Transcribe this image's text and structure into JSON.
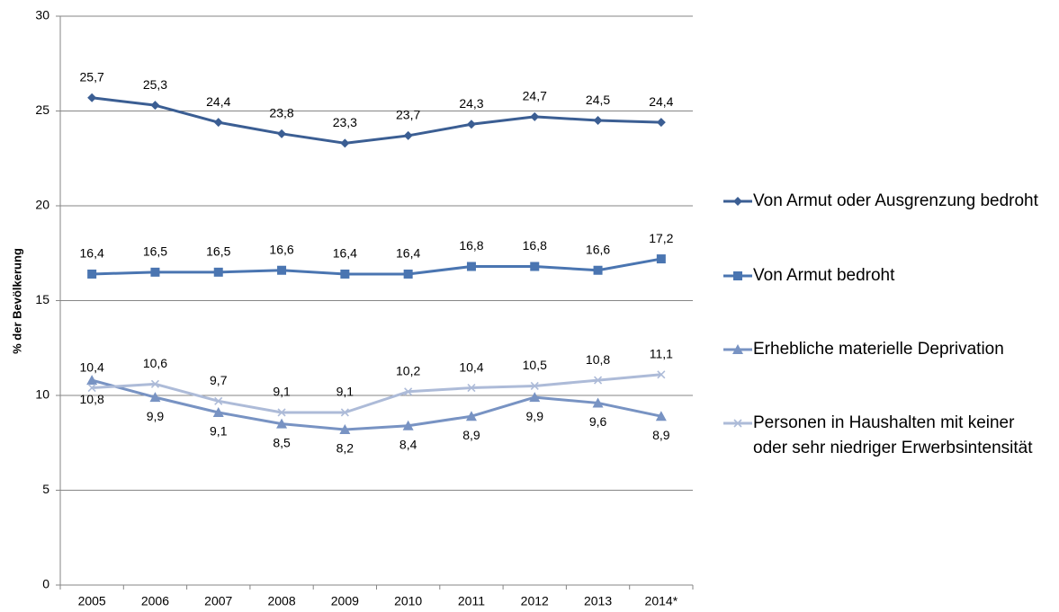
{
  "chart_data": {
    "type": "line",
    "y_label": "% der Bevölkerung",
    "categories": [
      "2005",
      "2006",
      "2007",
      "2008",
      "2009",
      "2010",
      "2011",
      "2012",
      "2013",
      "2014*"
    ],
    "ylim": [
      0,
      30
    ],
    "yticks": [
      0,
      5,
      10,
      15,
      20,
      25,
      30
    ],
    "grid": true,
    "series": [
      {
        "name": "Von Armut oder Ausgrenzung bedroht",
        "color": "#3b5e93",
        "marker": "diamond",
        "label_position": "above",
        "values": [
          25.7,
          25.3,
          24.4,
          23.8,
          23.3,
          23.7,
          24.3,
          24.7,
          24.5,
          24.4
        ],
        "value_labels": [
          "25,7",
          "25,3",
          "24,4",
          "23,8",
          "23,3",
          "23,7",
          "24,3",
          "24,7",
          "24,5",
          "24,4"
        ]
      },
      {
        "name": "Von Armut bedroht",
        "color": "#4a75b1",
        "marker": "square",
        "label_position": "above",
        "values": [
          16.4,
          16.5,
          16.5,
          16.6,
          16.4,
          16.4,
          16.8,
          16.8,
          16.6,
          17.2
        ],
        "value_labels": [
          "16,4",
          "16,5",
          "16,5",
          "16,6",
          "16,4",
          "16,4",
          "16,8",
          "16,8",
          "16,6",
          "17,2"
        ]
      },
      {
        "name": "Erhebliche materielle Deprivation",
        "color": "#7893c3",
        "marker": "triangle",
        "label_position": "below",
        "values": [
          10.8,
          9.9,
          9.1,
          8.5,
          8.2,
          8.4,
          8.9,
          9.9,
          9.6,
          8.9
        ],
        "value_labels": [
          "10,8",
          "9,9",
          "9,1",
          "8,5",
          "8,2",
          "8,4",
          "8,9",
          "9,9",
          "9,6",
          "8,9"
        ]
      },
      {
        "name": "Personen in Haushalten mit keiner oder sehr niedriger Erwerbsintensität",
        "color": "#adbbd8",
        "marker": "x",
        "label_position": "above",
        "values": [
          10.4,
          10.6,
          9.7,
          9.1,
          9.1,
          10.2,
          10.4,
          10.5,
          10.8,
          11.1
        ],
        "value_labels": [
          "10,4",
          "10,6",
          "9,7",
          "9,1",
          "9,1",
          "10,2",
          "10,4",
          "10,5",
          "10,8",
          "11,1"
        ]
      }
    ]
  }
}
